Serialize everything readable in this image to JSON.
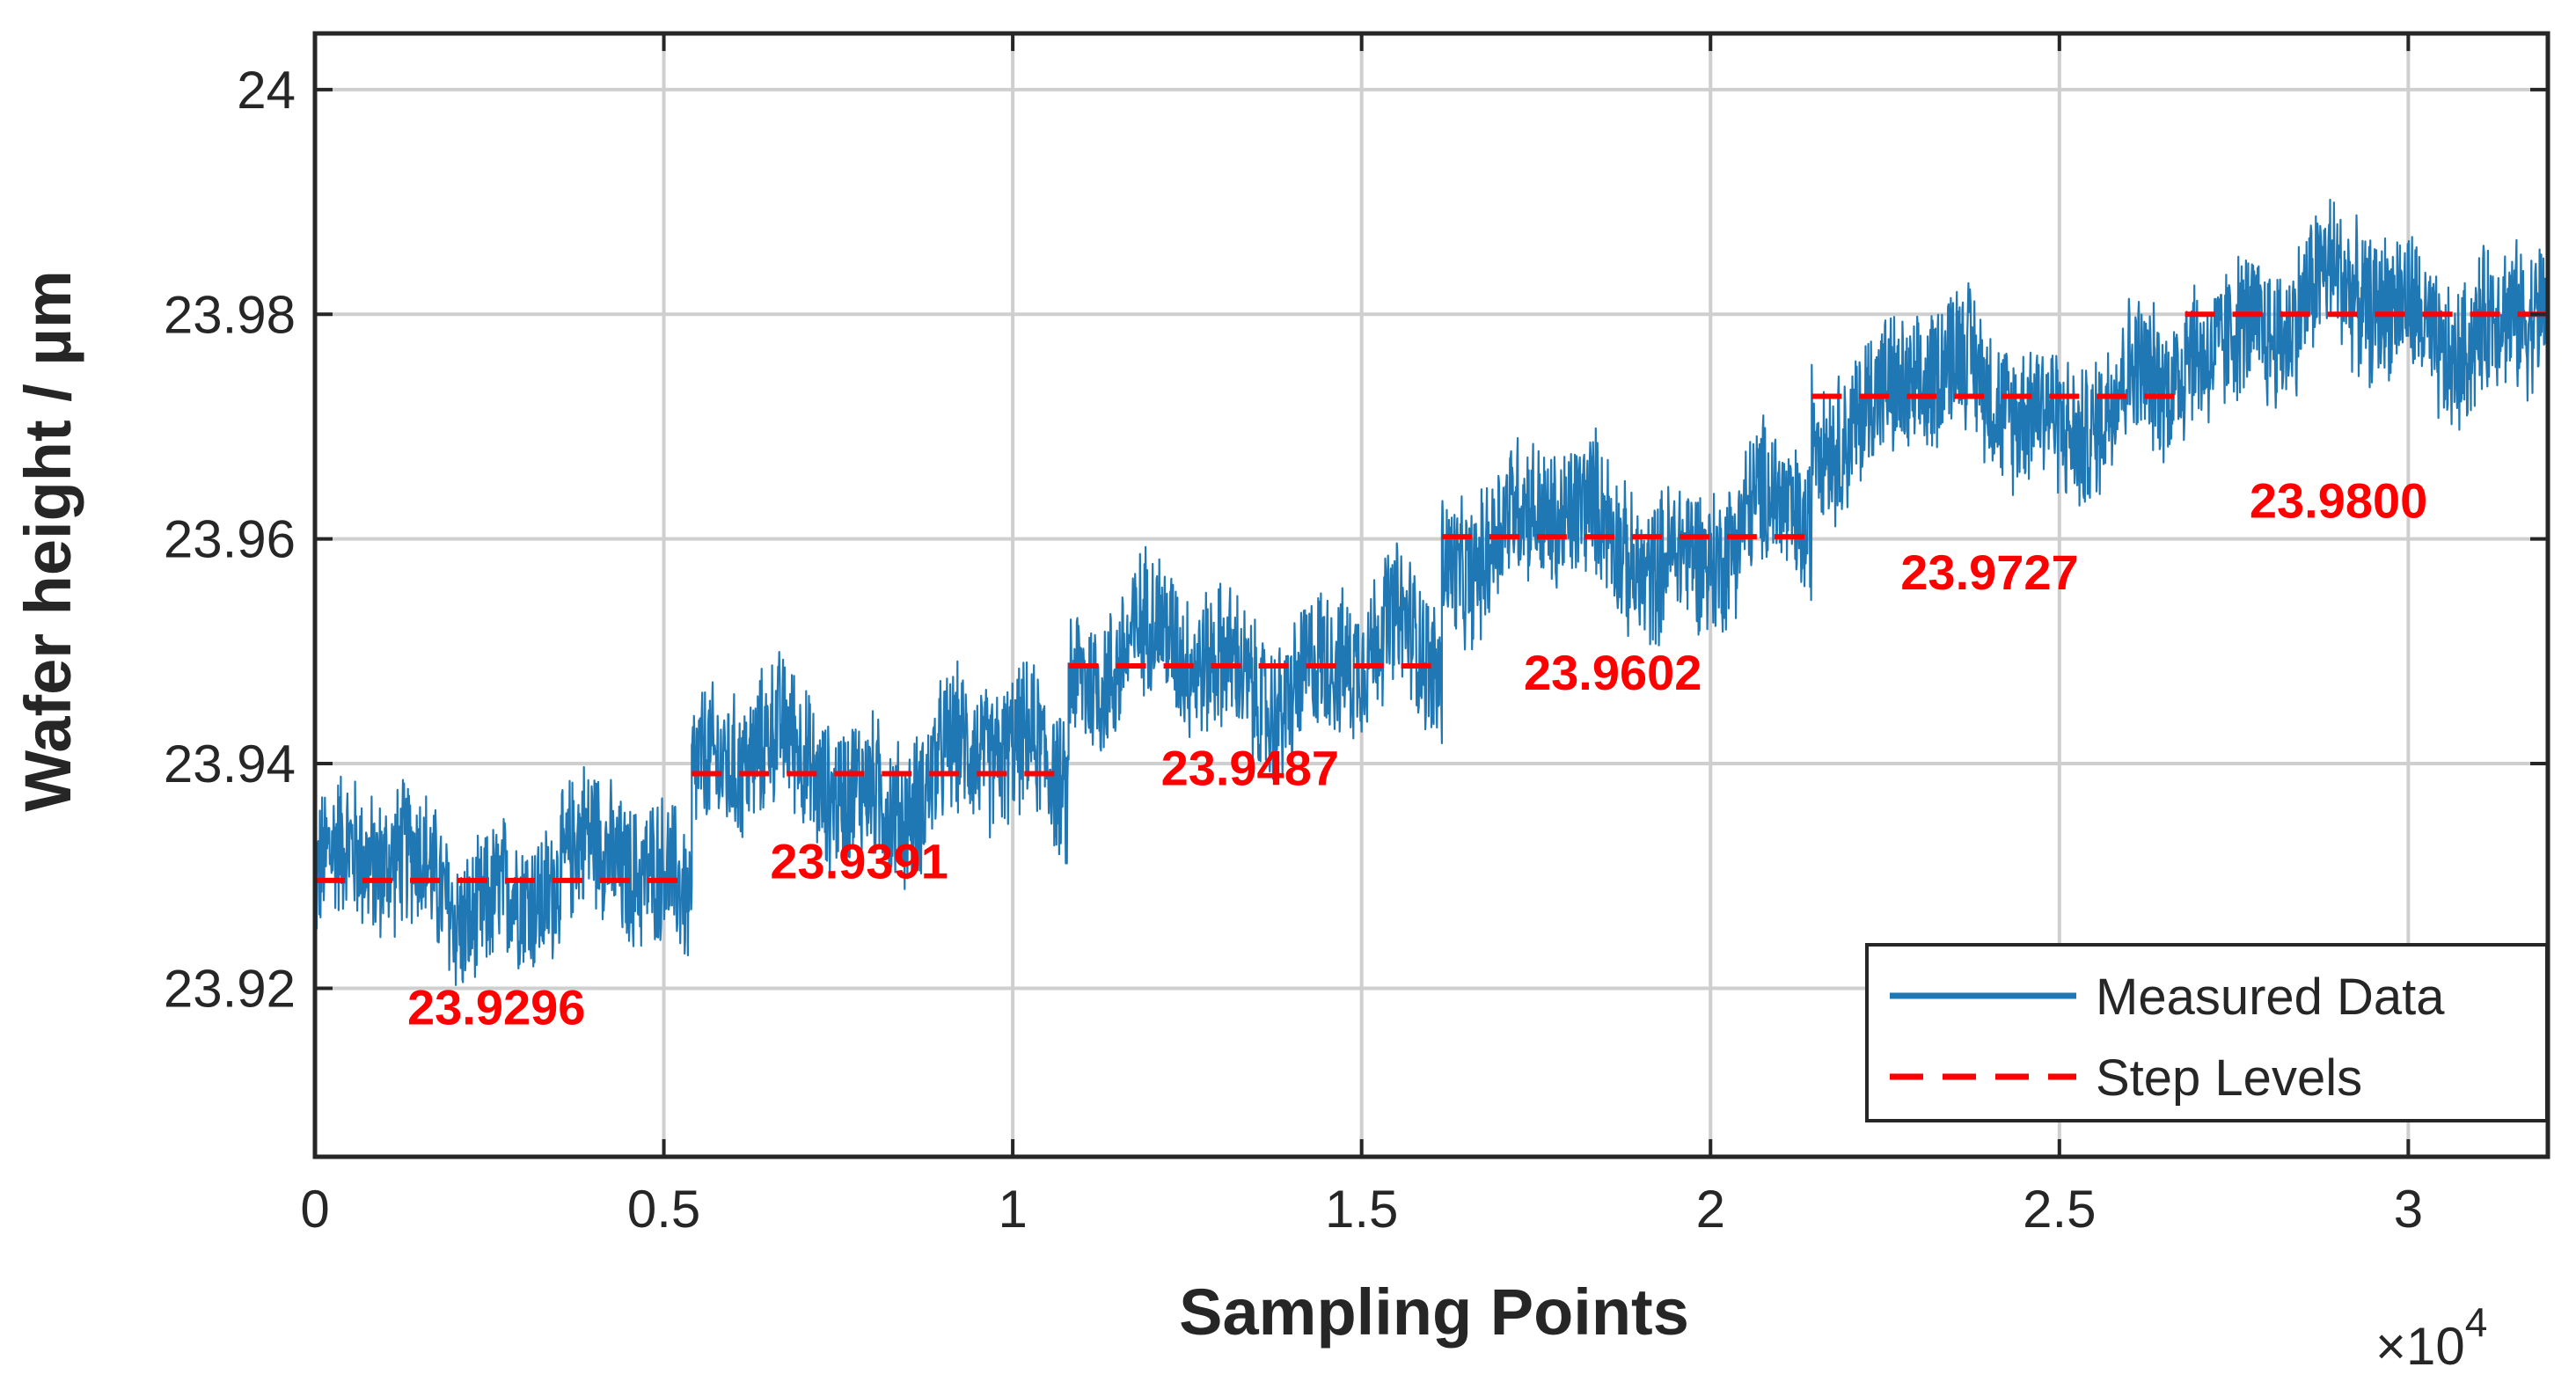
{
  "chart_data": {
    "type": "line",
    "title": "",
    "xlabel": "Sampling Points",
    "ylabel": "Wafer height / µm",
    "x_multiplier_label": "×10",
    "x_multiplier_exponent": "4",
    "xlim": [
      0,
      32000
    ],
    "ylim": [
      23.905,
      24.005
    ],
    "grid": true,
    "legend_position": "bottom-right",
    "x_ticks": [
      0,
      5000,
      10000,
      15000,
      20000,
      25000,
      30000
    ],
    "x_tick_labels": [
      "0",
      "0.5",
      "1",
      "1.5",
      "2",
      "2.5",
      "3"
    ],
    "y_ticks": [
      23.92,
      23.94,
      23.96,
      23.98,
      24.0
    ],
    "y_tick_labels": [
      "23.92",
      "23.94",
      "23.96",
      "23.98",
      "24"
    ],
    "series": [
      {
        "name": "Measured Data",
        "color": "#1f77b4",
        "style": "solid",
        "segments": [
          {
            "x_start": 0,
            "x_end": 5400,
            "mean": 23.9296,
            "spread": 0.0075
          },
          {
            "x_start": 5400,
            "x_end": 10800,
            "mean": 23.9391,
            "spread": 0.0075
          },
          {
            "x_start": 10800,
            "x_end": 16150,
            "mean": 23.9487,
            "spread": 0.0075
          },
          {
            "x_start": 16150,
            "x_end": 21450,
            "mean": 23.9602,
            "spread": 0.0075
          },
          {
            "x_start": 21450,
            "x_end": 26800,
            "mean": 23.9727,
            "spread": 0.0075
          },
          {
            "x_start": 26800,
            "x_end": 32000,
            "mean": 23.98,
            "spread": 0.0075
          }
        ]
      },
      {
        "name": "Step Levels",
        "color": "#ff0000",
        "style": "dashed",
        "steps": [
          {
            "x_start": 0,
            "x_end": 5400,
            "y": 23.9296
          },
          {
            "x_start": 5400,
            "x_end": 10800,
            "y": 23.9391
          },
          {
            "x_start": 10800,
            "x_end": 16150,
            "y": 23.9487
          },
          {
            "x_start": 16150,
            "x_end": 21450,
            "y": 23.9602
          },
          {
            "x_start": 21450,
            "x_end": 26800,
            "y": 23.9727
          },
          {
            "x_start": 26800,
            "x_end": 32000,
            "y": 23.98
          }
        ]
      }
    ],
    "annotations": [
      {
        "text": "23.9296",
        "x": 2600,
        "y": 23.9168,
        "color": "#ff0000"
      },
      {
        "text": "23.9391",
        "x": 7800,
        "y": 23.9298,
        "color": "#ff0000"
      },
      {
        "text": "23.9487",
        "x": 13400,
        "y": 23.9381,
        "color": "#ff0000"
      },
      {
        "text": "23.9602",
        "x": 18600,
        "y": 23.9466,
        "color": "#ff0000"
      },
      {
        "text": "23.9727",
        "x": 24000,
        "y": 23.9555,
        "color": "#ff0000"
      },
      {
        "text": "23.9800",
        "x": 29000,
        "y": 23.9619,
        "color": "#ff0000"
      }
    ]
  }
}
